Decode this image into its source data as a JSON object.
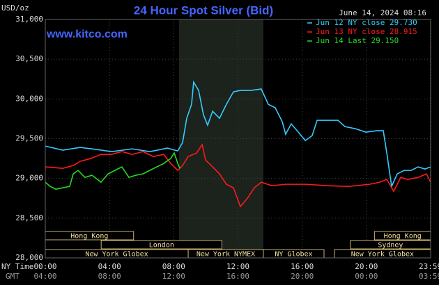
{
  "chart_data": {
    "type": "line",
    "title": "24 Hour Spot Silver (Bid)",
    "unit_label": "USD/oz",
    "timestamp": "June 14, 2024 08:16",
    "watermark": "www.kitco.com",
    "xlim": [
      0,
      24
    ],
    "xticks": [
      {
        "value": 0,
        "label": "00:00"
      },
      {
        "value": 4,
        "label": "04:00"
      },
      {
        "value": 8,
        "label": "08:00"
      },
      {
        "value": 12,
        "label": "12:00"
      },
      {
        "value": 16,
        "label": "16:00"
      },
      {
        "value": 20,
        "label": "20:00"
      },
      {
        "value": 23.98,
        "label": "23:59"
      }
    ],
    "gmt_labels": [
      "04:00",
      "08:00",
      "12:00",
      "16:00",
      "20:00",
      "00:00",
      "03:59"
    ],
    "x_axis_label": "NY Time",
    "gmt_axis_label": "GMT",
    "ylim": [
      28000,
      31000
    ],
    "yticks": [
      {
        "value": 28000,
        "label": "28,000"
      },
      {
        "value": 28500,
        "label": "28,500"
      },
      {
        "value": 29000,
        "label": "29,000"
      },
      {
        "value": 29500,
        "label": "29,500"
      },
      {
        "value": 30000,
        "label": "30,000"
      },
      {
        "value": 30500,
        "label": "30,500"
      },
      {
        "value": 31000,
        "label": "31,000"
      }
    ],
    "grid": true,
    "shade": [
      8.33,
      13.58
    ],
    "sessions": [
      {
        "label": "Hong Kong",
        "start": 0,
        "end": 5.5,
        "row": 0
      },
      {
        "label": "London",
        "start": 3.48,
        "end": 11.0,
        "row": 1
      },
      {
        "label": "New York Globex",
        "start": 0,
        "end": 8.9,
        "row": 2
      },
      {
        "label": "New York NYMEX",
        "start": 8.9,
        "end": 13.58,
        "row": 2
      },
      {
        "label": "NY Globex",
        "start": 13.58,
        "end": 17.36,
        "row": 2
      },
      {
        "label": "Hong Kong",
        "start": 20.5,
        "end": 24,
        "row": 0
      },
      {
        "label": "Sydney",
        "start": 19.0,
        "end": 24,
        "row": 1
      },
      {
        "label": "New York Globex",
        "start": 18.0,
        "end": 24,
        "row": 2
      }
    ],
    "series": [
      {
        "name": "Jun 12 NY close 29.730",
        "color": "#33ccff",
        "x": [
          0,
          1.09,
          2.17,
          3.26,
          4.12,
          5.42,
          6.51,
          7.6,
          8.25,
          8.55,
          8.81,
          9.11,
          9.24,
          9.55,
          9.85,
          10.11,
          10.42,
          10.85,
          11.28,
          11.72,
          12.15,
          12.8,
          13.45,
          13.89,
          14.32,
          14.76,
          14.97,
          15.32,
          15.76,
          16.19,
          16.62,
          16.93,
          17.58,
          18.23,
          18.66,
          19.31,
          19.97,
          20.62,
          21.05,
          21.27,
          21.57,
          21.92,
          22.35,
          22.79,
          23.22,
          23.65,
          24
        ],
        "values": [
          29407,
          29355,
          29390,
          29363,
          29337,
          29372,
          29337,
          29381,
          29346,
          29451,
          29757,
          29932,
          30212,
          30107,
          29801,
          29670,
          29845,
          29757,
          29932,
          30090,
          30107,
          30107,
          30125,
          29932,
          29889,
          29713,
          29556,
          29687,
          29582,
          29477,
          29538,
          29731,
          29731,
          29731,
          29652,
          29626,
          29582,
          29600,
          29600,
          29320,
          28900,
          29057,
          29101,
          29101,
          29145,
          29118,
          29145
        ]
      },
      {
        "name": "Jun 13 NY close 28.915",
        "color": "#ff1a1a",
        "x": [
          0,
          1.09,
          1.74,
          2.17,
          2.82,
          3.47,
          4.12,
          4.77,
          5.42,
          6.08,
          6.73,
          7.38,
          7.81,
          8.25,
          8.55,
          8.9,
          9.42,
          9.77,
          9.98,
          10.42,
          10.85,
          11.28,
          11.72,
          12.15,
          12.59,
          13.02,
          13.45,
          14.11,
          14.97,
          16.28,
          17.58,
          18.88,
          20.19,
          20.83,
          21.27,
          21.7,
          22.14,
          22.57,
          23.22,
          23.74,
          24
        ],
        "values": [
          29145,
          29127,
          29162,
          29215,
          29250,
          29302,
          29302,
          29337,
          29302,
          29337,
          29276,
          29302,
          29188,
          29101,
          29162,
          29276,
          29320,
          29425,
          29232,
          29145,
          29057,
          28926,
          28882,
          28646,
          28751,
          28882,
          28952,
          28908,
          28926,
          28926,
          28908,
          28899,
          28926,
          28952,
          28987,
          28838,
          29013,
          28987,
          29013,
          29057,
          28952
        ]
      },
      {
        "name": "Jun 14 Last 29.150",
        "color": "#22dd22",
        "x": [
          0,
          0.3,
          0.65,
          1.09,
          1.52,
          1.74,
          2.04,
          2.47,
          2.91,
          3.47,
          3.91,
          4.34,
          4.77,
          5.21,
          5.64,
          6.08,
          6.51,
          6.94,
          7.38,
          7.81,
          8.03,
          8.25,
          8.38
        ],
        "values": [
          28952,
          28900,
          28865,
          28882,
          28900,
          29057,
          29101,
          29013,
          29040,
          28952,
          29057,
          29101,
          29145,
          29013,
          29040,
          29057,
          29101,
          29145,
          29188,
          29250,
          29320,
          29188,
          29127
        ]
      }
    ]
  }
}
